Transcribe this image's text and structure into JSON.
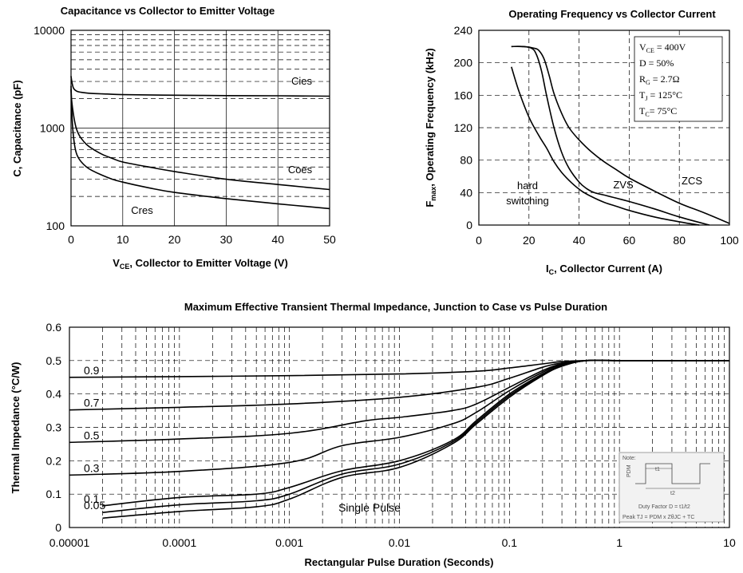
{
  "chart_data": [
    {
      "type": "line",
      "title": "Capacitance vs Collector to Emitter Voltage",
      "ylabel": "C, Capacitance (pF)",
      "xlabel_main": "V",
      "xlabel_sub": "CE",
      "xlabel_rest": ", Collector to Emitter Voltage (V)",
      "xlim": [
        0,
        50
      ],
      "ylim": [
        100,
        10000
      ],
      "yscale": "log",
      "xticks": [
        0,
        10,
        20,
        30,
        40,
        50
      ],
      "yticks": [
        100,
        1000,
        10000
      ],
      "grid": true,
      "series": [
        {
          "name": "Cies",
          "x": [
            0,
            0.2,
            0.5,
            1,
            2,
            4,
            7,
            10,
            20,
            30,
            40,
            50
          ],
          "y": [
            3400,
            2900,
            2550,
            2400,
            2320,
            2260,
            2230,
            2200,
            2170,
            2150,
            2140,
            2120
          ]
        },
        {
          "name": "Coes",
          "x": [
            0,
            0.1,
            0.3,
            0.6,
            1,
            1.5,
            2,
            3,
            4,
            6,
            8,
            10,
            15,
            20,
            30,
            40,
            50
          ],
          "y": [
            2700,
            2000,
            1600,
            1250,
            1000,
            860,
            780,
            680,
            620,
            540,
            490,
            450,
            400,
            360,
            300,
            265,
            235
          ]
        },
        {
          "name": "Cres",
          "x": [
            0,
            0.1,
            0.3,
            0.6,
            1,
            1.5,
            2,
            3,
            4,
            6,
            8,
            10,
            15,
            20,
            30,
            40,
            50
          ],
          "y": [
            2500,
            1700,
            1050,
            720,
            560,
            490,
            450,
            400,
            370,
            330,
            300,
            280,
            245,
            220,
            190,
            168,
            150
          ]
        }
      ],
      "annotations": [
        "Cies",
        "Coes",
        "Cres"
      ]
    },
    {
      "type": "line",
      "title": "Operating Frequency vs Collector Current",
      "ylabel_main": "F",
      "ylabel_sub": "max",
      "ylabel_rest": ", Operating Frequency (kHz)",
      "xlabel_main": "I",
      "xlabel_sub": "C",
      "xlabel_rest": ", Collector Current (A)",
      "xlim": [
        0,
        100
      ],
      "ylim": [
        0,
        240
      ],
      "xticks": [
        0,
        20,
        40,
        60,
        80,
        100
      ],
      "yticks": [
        0,
        40,
        80,
        120,
        160,
        200,
        240
      ],
      "grid": true,
      "series": [
        {
          "name": "hard switching",
          "x": [
            13,
            16,
            20,
            24,
            27,
            30,
            33,
            37,
            41,
            45,
            50,
            55,
            60,
            70,
            80,
            88
          ],
          "y": [
            195,
            165,
            133,
            110,
            95,
            78,
            65,
            52,
            42,
            35,
            28,
            23,
            18,
            10,
            4,
            0
          ]
        },
        {
          "name": "ZVS",
          "x": [
            13,
            17,
            21,
            23,
            25,
            27,
            30,
            33,
            36,
            40,
            43,
            46,
            50,
            55,
            60,
            70,
            80,
            92
          ],
          "y": [
            220,
            220,
            218,
            210,
            190,
            160,
            120,
            90,
            70,
            53,
            45,
            40,
            37,
            33,
            29,
            20,
            10,
            0
          ]
        },
        {
          "name": "ZCS",
          "x": [
            13,
            18,
            22,
            24,
            26,
            28,
            30,
            33,
            36,
            40,
            45,
            50,
            55,
            60,
            70,
            80,
            90,
            100
          ],
          "y": [
            220,
            220,
            218,
            215,
            205,
            185,
            162,
            138,
            120,
            105,
            90,
            78,
            68,
            58,
            42,
            27,
            15,
            2
          ]
        }
      ],
      "annotations": [
        "hard",
        "switching",
        "ZVS",
        "ZCS"
      ],
      "legend": {
        "placement": "top-right",
        "lines": [
          {
            "main": "V",
            "sub": "CE",
            "rest": " = 400V"
          },
          {
            "main": "D = 50%",
            "sub": "",
            "rest": ""
          },
          {
            "main": "R",
            "sub": "G",
            "rest": " = 2.7Ω"
          },
          {
            "main": "T",
            "sub": "J",
            "rest": " = 125°C"
          },
          {
            "main": "T",
            "sub": "C",
            "rest": "= 75°C"
          }
        ]
      }
    },
    {
      "type": "line",
      "title": "Maximum Effective Transient Thermal Impedance, Junction to Case vs Pulse Duration",
      "ylabel": "Thermal Impedance (°C/W)",
      "xlabel": "Rectangular Pulse Duration (Seconds)",
      "xscale": "log",
      "xlim": [
        1e-05,
        10
      ],
      "ylim": [
        0,
        0.6
      ],
      "xtick_values": [
        1e-05,
        0.0001,
        0.001,
        0.01,
        0.1,
        1,
        10
      ],
      "xtick_labels": [
        "0.00001",
        "0.0001",
        "0.001",
        "0.01",
        "0.1",
        "1",
        "10"
      ],
      "yticks": [
        0,
        0.1,
        0.2,
        0.3,
        0.4,
        0.5,
        0.6
      ],
      "ytick_labels": [
        "0",
        "0.1",
        "0.2",
        "0.3",
        "0.4",
        "0.5",
        "0.6"
      ],
      "grid": true,
      "series": [
        {
          "name": "0.9",
          "x": [
            1e-05,
            0.0001,
            0.001,
            0.01,
            0.05,
            0.1,
            0.2,
            0.3,
            0.5,
            1,
            10
          ],
          "y": [
            0.45,
            0.452,
            0.455,
            0.46,
            0.468,
            0.478,
            0.49,
            0.497,
            0.5,
            0.5,
            0.5
          ]
        },
        {
          "name": "0.7",
          "x": [
            1e-05,
            0.0001,
            0.001,
            0.01,
            0.05,
            0.1,
            0.2,
            0.3,
            0.5,
            1,
            10
          ],
          "y": [
            0.352,
            0.36,
            0.37,
            0.39,
            0.42,
            0.447,
            0.48,
            0.493,
            0.5,
            0.5,
            0.5
          ]
        },
        {
          "name": "0.5",
          "x": [
            1e-05,
            0.0001,
            0.001,
            0.005,
            0.01,
            0.03,
            0.05,
            0.1,
            0.2,
            0.3,
            0.5,
            1,
            10
          ],
          "y": [
            0.255,
            0.265,
            0.282,
            0.32,
            0.33,
            0.35,
            0.37,
            0.42,
            0.47,
            0.49,
            0.5,
            0.5,
            0.5
          ]
        },
        {
          "name": "0.3",
          "x": [
            1e-05,
            0.0001,
            0.001,
            0.003,
            0.01,
            0.03,
            0.05,
            0.1,
            0.2,
            0.3,
            0.5,
            1,
            10
          ],
          "y": [
            0.157,
            0.168,
            0.195,
            0.245,
            0.27,
            0.31,
            0.345,
            0.41,
            0.465,
            0.488,
            0.5,
            0.5,
            0.5
          ]
        },
        {
          "name": "0.1",
          "x": [
            2e-05,
            0.0001,
            0.0005,
            0.001,
            0.003,
            0.01,
            0.03,
            0.05,
            0.1,
            0.2,
            0.3,
            0.5,
            1,
            10
          ],
          "y": [
            0.065,
            0.09,
            0.1,
            0.12,
            0.17,
            0.2,
            0.26,
            0.32,
            0.4,
            0.46,
            0.485,
            0.5,
            0.5,
            0.5
          ]
        },
        {
          "name": "0.05",
          "x": [
            2e-05,
            0.0001,
            0.0005,
            0.001,
            0.003,
            0.01,
            0.03,
            0.05,
            0.1,
            0.2,
            0.3,
            0.5,
            1,
            10
          ],
          "y": [
            0.045,
            0.068,
            0.08,
            0.1,
            0.16,
            0.19,
            0.255,
            0.315,
            0.395,
            0.458,
            0.485,
            0.5,
            0.5,
            0.5
          ]
        },
        {
          "name": "Single Pulse",
          "x": [
            2e-05,
            0.0001,
            0.0005,
            0.001,
            0.003,
            0.01,
            0.03,
            0.05,
            0.1,
            0.2,
            0.3,
            0.5,
            1,
            10
          ],
          "y": [
            0.028,
            0.048,
            0.062,
            0.085,
            0.15,
            0.18,
            0.25,
            0.31,
            0.39,
            0.455,
            0.483,
            0.5,
            0.5,
            0.5
          ]
        }
      ],
      "curve_labels": [
        "0.9",
        "0.7",
        "0.5",
        "0.3",
        "0.1",
        "0.05"
      ],
      "single_pulse_label": "Single Pulse",
      "note": {
        "title": "Note:",
        "pdm": "PDM",
        "t1": "t1",
        "t2": "t2",
        "duty": "Duty Factor  D = t1/t2",
        "peak": "Peak TJ = PDM x ZθJC + TC"
      }
    }
  ]
}
